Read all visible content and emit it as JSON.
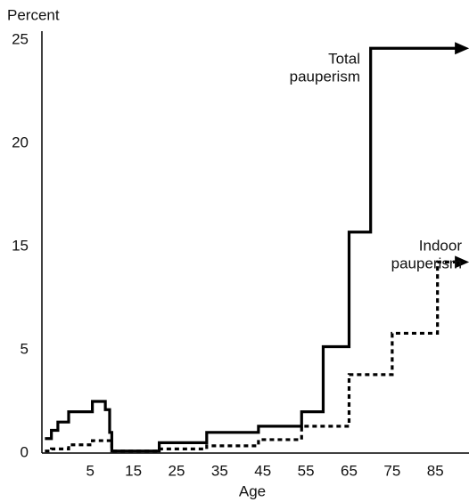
{
  "chart_data": {
    "type": "step",
    "y_label": "Percent",
    "x_label": "Age",
    "xlim": [
      -6.2,
      92.8
    ],
    "xticks": [
      5,
      15,
      25,
      35,
      45,
      55,
      65,
      75,
      85
    ],
    "ylim": [
      0,
      25
    ],
    "yticks": [
      0,
      5,
      15,
      20,
      25
    ],
    "grid": false,
    "series": [
      {
        "name": "Total pauperism",
        "name_lines": [
          "Total",
          "pauperism"
        ],
        "color": "#000000",
        "dash": false,
        "x": [
          -5.5,
          -4,
          -2.5,
          0,
          5.5,
          8.5,
          9.5,
          10,
          21,
          32,
          44,
          54,
          59,
          65,
          70,
          92
        ],
        "values": [
          0.7,
          1.1,
          1.5,
          2.0,
          2.5,
          2.1,
          1.0,
          0.1,
          0.5,
          1.0,
          1.3,
          2.0,
          5.3,
          15.7,
          24.6,
          24.6
        ]
      },
      {
        "name": "Indoor pauperism",
        "name_lines": [
          "Indoor",
          "pauperism"
        ],
        "color": "#000000",
        "dash": true,
        "x": [
          -5.5,
          -4,
          0,
          5.5,
          10,
          21,
          32,
          44,
          54,
          65,
          75,
          85.5,
          92
        ],
        "values": [
          0.1,
          0.2,
          0.4,
          0.6,
          0.1,
          0.2,
          0.35,
          0.65,
          1.3,
          3.8,
          6.6,
          13.5,
          13.5
        ]
      }
    ]
  }
}
